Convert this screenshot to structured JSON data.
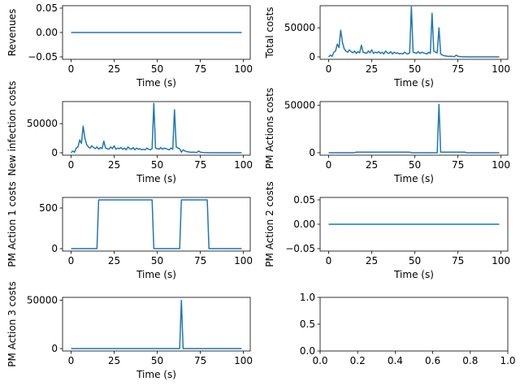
{
  "chart_data": [
    {
      "type": "line",
      "ylabel": "Revenues",
      "xlabel": "Time (s)",
      "xlim": [
        -4.95,
        103.95
      ],
      "ylim": [
        -0.055,
        0.055
      ],
      "xticks": [
        0,
        25,
        50,
        75,
        100
      ],
      "xtick_labels": [
        "0",
        "25",
        "50",
        "75",
        "100"
      ],
      "yticks": [
        -0.05,
        0,
        0.05
      ],
      "ytick_labels": [
        "−0.05",
        "0.00",
        "0.05"
      ],
      "color": "#1f77b4",
      "series": [
        {
          "x": [
            0,
            99
          ],
          "y": [
            0,
            0
          ]
        }
      ]
    },
    {
      "type": "line",
      "ylabel": "Total costs",
      "xlabel": "Time (s)",
      "xlim": [
        -4.95,
        103.95
      ],
      "ylim": [
        -4200,
        88000
      ],
      "xticks": [
        0,
        25,
        50,
        75,
        100
      ],
      "xtick_labels": [
        "0",
        "25",
        "50",
        "75",
        "100"
      ],
      "yticks": [
        0,
        50000
      ],
      "ytick_labels": [
        "0",
        "50000"
      ],
      "color": "#1f77b4",
      "series": [
        {
          "x": [
            0,
            1,
            2,
            3,
            4,
            5,
            6,
            7,
            8,
            9,
            10,
            11,
            12,
            13,
            14,
            15,
            16,
            17,
            18,
            19,
            20,
            21,
            22,
            23,
            24,
            25,
            26,
            27,
            28,
            29,
            30,
            31,
            32,
            33,
            34,
            35,
            36,
            37,
            38,
            39,
            40,
            41,
            42,
            43,
            44,
            45,
            46,
            47,
            48,
            49,
            50,
            51,
            52,
            53,
            54,
            55,
            56,
            57,
            58,
            59,
            60,
            61,
            62,
            63,
            64,
            65,
            66,
            67,
            68,
            69,
            70,
            71,
            72,
            73,
            74,
            75,
            76,
            77,
            78,
            79,
            80,
            85,
            90,
            95,
            99
          ],
          "y": [
            0,
            3000,
            1000,
            8000,
            10000,
            22000,
            16000,
            46000,
            25000,
            14000,
            10000,
            8000,
            12000,
            9000,
            7000,
            10000,
            6000,
            9000,
            7000,
            20000,
            8000,
            7000,
            6000,
            10000,
            7000,
            12000,
            6000,
            8000,
            7000,
            9000,
            6000,
            8000,
            5000,
            10000,
            7000,
            6000,
            9000,
            5000,
            8000,
            6000,
            7000,
            5000,
            6000,
            5000,
            8000,
            6000,
            5000,
            7000,
            86000,
            8000,
            7000,
            6000,
            9000,
            6000,
            8000,
            7000,
            6000,
            5000,
            8000,
            6000,
            75000,
            10000,
            8000,
            7000,
            50000,
            5000,
            3000,
            2000,
            1500,
            1000,
            800,
            1000,
            700,
            500,
            3000,
            1000,
            500,
            300,
            200,
            100,
            50,
            20,
            10,
            0,
            0
          ]
        }
      ]
    },
    {
      "type": "line",
      "ylabel": "New infection costs",
      "xlabel": "Time (s)",
      "xlim": [
        -4.95,
        103.95
      ],
      "ylim": [
        -4200,
        88000
      ],
      "xticks": [
        0,
        25,
        50,
        75,
        100
      ],
      "xtick_labels": [
        "0",
        "25",
        "50",
        "75",
        "100"
      ],
      "yticks": [
        0,
        50000
      ],
      "ytick_labels": [
        "0",
        "50000"
      ],
      "color": "#1f77b4",
      "series": [
        {
          "x": [
            0,
            1,
            2,
            3,
            4,
            5,
            6,
            7,
            8,
            9,
            10,
            11,
            12,
            13,
            14,
            15,
            16,
            17,
            18,
            19,
            20,
            21,
            22,
            23,
            24,
            25,
            26,
            27,
            28,
            29,
            30,
            31,
            32,
            33,
            34,
            35,
            36,
            37,
            38,
            39,
            40,
            41,
            42,
            43,
            44,
            45,
            46,
            47,
            48,
            49,
            50,
            51,
            52,
            53,
            54,
            55,
            56,
            57,
            58,
            59,
            60,
            61,
            62,
            63,
            64,
            65,
            66,
            67,
            68,
            69,
            70,
            71,
            72,
            73,
            74,
            75,
            76,
            77,
            78,
            79,
            80,
            85,
            90,
            95,
            99
          ],
          "y": [
            0,
            3000,
            1000,
            8000,
            10000,
            22000,
            16000,
            46000,
            25000,
            14000,
            10000,
            8000,
            12000,
            9000,
            7000,
            10000,
            6000,
            9000,
            7000,
            20000,
            8000,
            7000,
            6000,
            10000,
            7000,
            12000,
            6000,
            8000,
            7000,
            9000,
            6000,
            8000,
            5000,
            10000,
            7000,
            6000,
            9000,
            5000,
            8000,
            6000,
            7000,
            5000,
            6000,
            5000,
            8000,
            6000,
            5000,
            7000,
            85000,
            8000,
            7000,
            6000,
            9000,
            6000,
            8000,
            7000,
            6000,
            5000,
            8000,
            6000,
            74000,
            10000,
            8000,
            7000,
            1000,
            5000,
            3000,
            2000,
            1500,
            1000,
            800,
            1000,
            700,
            500,
            3000,
            1000,
            500,
            300,
            200,
            100,
            50,
            20,
            10,
            0,
            0
          ]
        }
      ]
    },
    {
      "type": "line",
      "ylabel": "PM Actions costs",
      "xlabel": "Time (s)",
      "xlim": [
        -4.95,
        103.95
      ],
      "ylim": [
        -2600,
        54000
      ],
      "xticks": [
        0,
        25,
        50,
        75,
        100
      ],
      "xtick_labels": [
        "0",
        "25",
        "50",
        "75",
        "100"
      ],
      "yticks": [
        0,
        50000
      ],
      "ytick_labels": [
        "0",
        "50000"
      ],
      "color": "#1f77b4",
      "series": [
        {
          "x": [
            0,
            15,
            16,
            47,
            48,
            63,
            64,
            65,
            79,
            80,
            99
          ],
          "y": [
            0,
            0,
            600,
            600,
            0,
            0,
            51000,
            600,
            600,
            0,
            0
          ]
        }
      ]
    },
    {
      "type": "line",
      "ylabel": "PM Action 1 costs",
      "xlabel": "Time (s)",
      "xlim": [
        -4.95,
        103.95
      ],
      "ylim": [
        -30,
        630
      ],
      "xticks": [
        0,
        25,
        50,
        75,
        100
      ],
      "xtick_labels": [
        "0",
        "25",
        "50",
        "75",
        "100"
      ],
      "yticks": [
        0,
        500
      ],
      "ytick_labels": [
        "0",
        "500"
      ],
      "color": "#1f77b4",
      "series": [
        {
          "x": [
            0,
            15,
            16,
            47,
            48,
            63,
            64,
            79,
            80,
            99
          ],
          "y": [
            0,
            0,
            600,
            600,
            0,
            0,
            600,
            600,
            0,
            0
          ]
        }
      ]
    },
    {
      "type": "line",
      "ylabel": "PM Action 2 costs",
      "xlabel": "Time (s)",
      "xlim": [
        -4.95,
        103.95
      ],
      "ylim": [
        -0.055,
        0.055
      ],
      "xticks": [
        0,
        25,
        50,
        75,
        100
      ],
      "xtick_labels": [
        "0",
        "25",
        "50",
        "75",
        "100"
      ],
      "yticks": [
        -0.05,
        0,
        0.05
      ],
      "ytick_labels": [
        "−0.05",
        "0.00",
        "0.05"
      ],
      "color": "#1f77b4",
      "series": [
        {
          "x": [
            0,
            99
          ],
          "y": [
            0,
            0
          ]
        }
      ]
    },
    {
      "type": "line",
      "ylabel": "PM Action 3 costs",
      "xlabel": "Time (s)",
      "xlim": [
        -4.95,
        103.95
      ],
      "ylim": [
        -2500,
        53000
      ],
      "xticks": [
        0,
        25,
        50,
        75,
        100
      ],
      "xtick_labels": [
        "0",
        "25",
        "50",
        "75",
        "100"
      ],
      "yticks": [
        0,
        50000
      ],
      "ytick_labels": [
        "0",
        "50000"
      ],
      "color": "#1f77b4",
      "series": [
        {
          "x": [
            0,
            63,
            64,
            65,
            99
          ],
          "y": [
            0,
            0,
            50000,
            0,
            0
          ]
        }
      ]
    },
    {
      "type": "line",
      "ylabel": "",
      "xlabel": "",
      "xlim": [
        0,
        1
      ],
      "ylim": [
        0,
        1
      ],
      "xticks": [
        0,
        0.2,
        0.4,
        0.6,
        0.8,
        1
      ],
      "xtick_labels": [
        "0.0",
        "0.2",
        "0.4",
        "0.6",
        "0.8",
        "1.0"
      ],
      "yticks": [
        0,
        0.5,
        1
      ],
      "ytick_labels": [
        "0.0",
        "0.5",
        "1.0"
      ],
      "color": "#1f77b4",
      "series": []
    }
  ]
}
